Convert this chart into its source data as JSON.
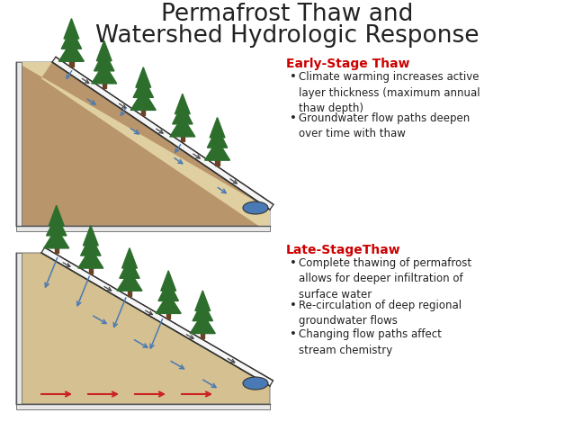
{
  "title_line1": "Permafrost Thaw and",
  "title_line2": "Watershed Hydrologic Response",
  "title_fontsize": 19,
  "title_color": "#222222",
  "bg_color": "#ffffff",
  "early_label": "Early-Stage Thaw",
  "early_label_color": "#cc0000",
  "early_bullets": [
    "Climate warming increases active\nlayer thickness (maximum annual\nthaw depth)",
    "Groundwater flow paths deepen\nover time with thaw"
  ],
  "late_label": "Late-StageThaw",
  "late_label_color": "#cc0000",
  "late_bullets": [
    "Complete thawing of permafrost\nallows for deeper infiltration of\nsurface water",
    "Re-circulation of deep regional\ngroundwater flows",
    "Changing flow paths affect\nstream chemistry"
  ],
  "bullet_fontsize": 8.5,
  "label_fontsize": 10,
  "top_diagram": {
    "permafrost_color": "#b8956a",
    "active_layer_color": "#e0cfa0",
    "surface_color": "#f5f5f5",
    "water_color": "#4a7ab5"
  },
  "bottom_diagram": {
    "soil_color": "#d4c090",
    "surface_color": "#f5f5f5",
    "water_color": "#4a7ab5",
    "arrow_color_deep": "#cc2222"
  }
}
